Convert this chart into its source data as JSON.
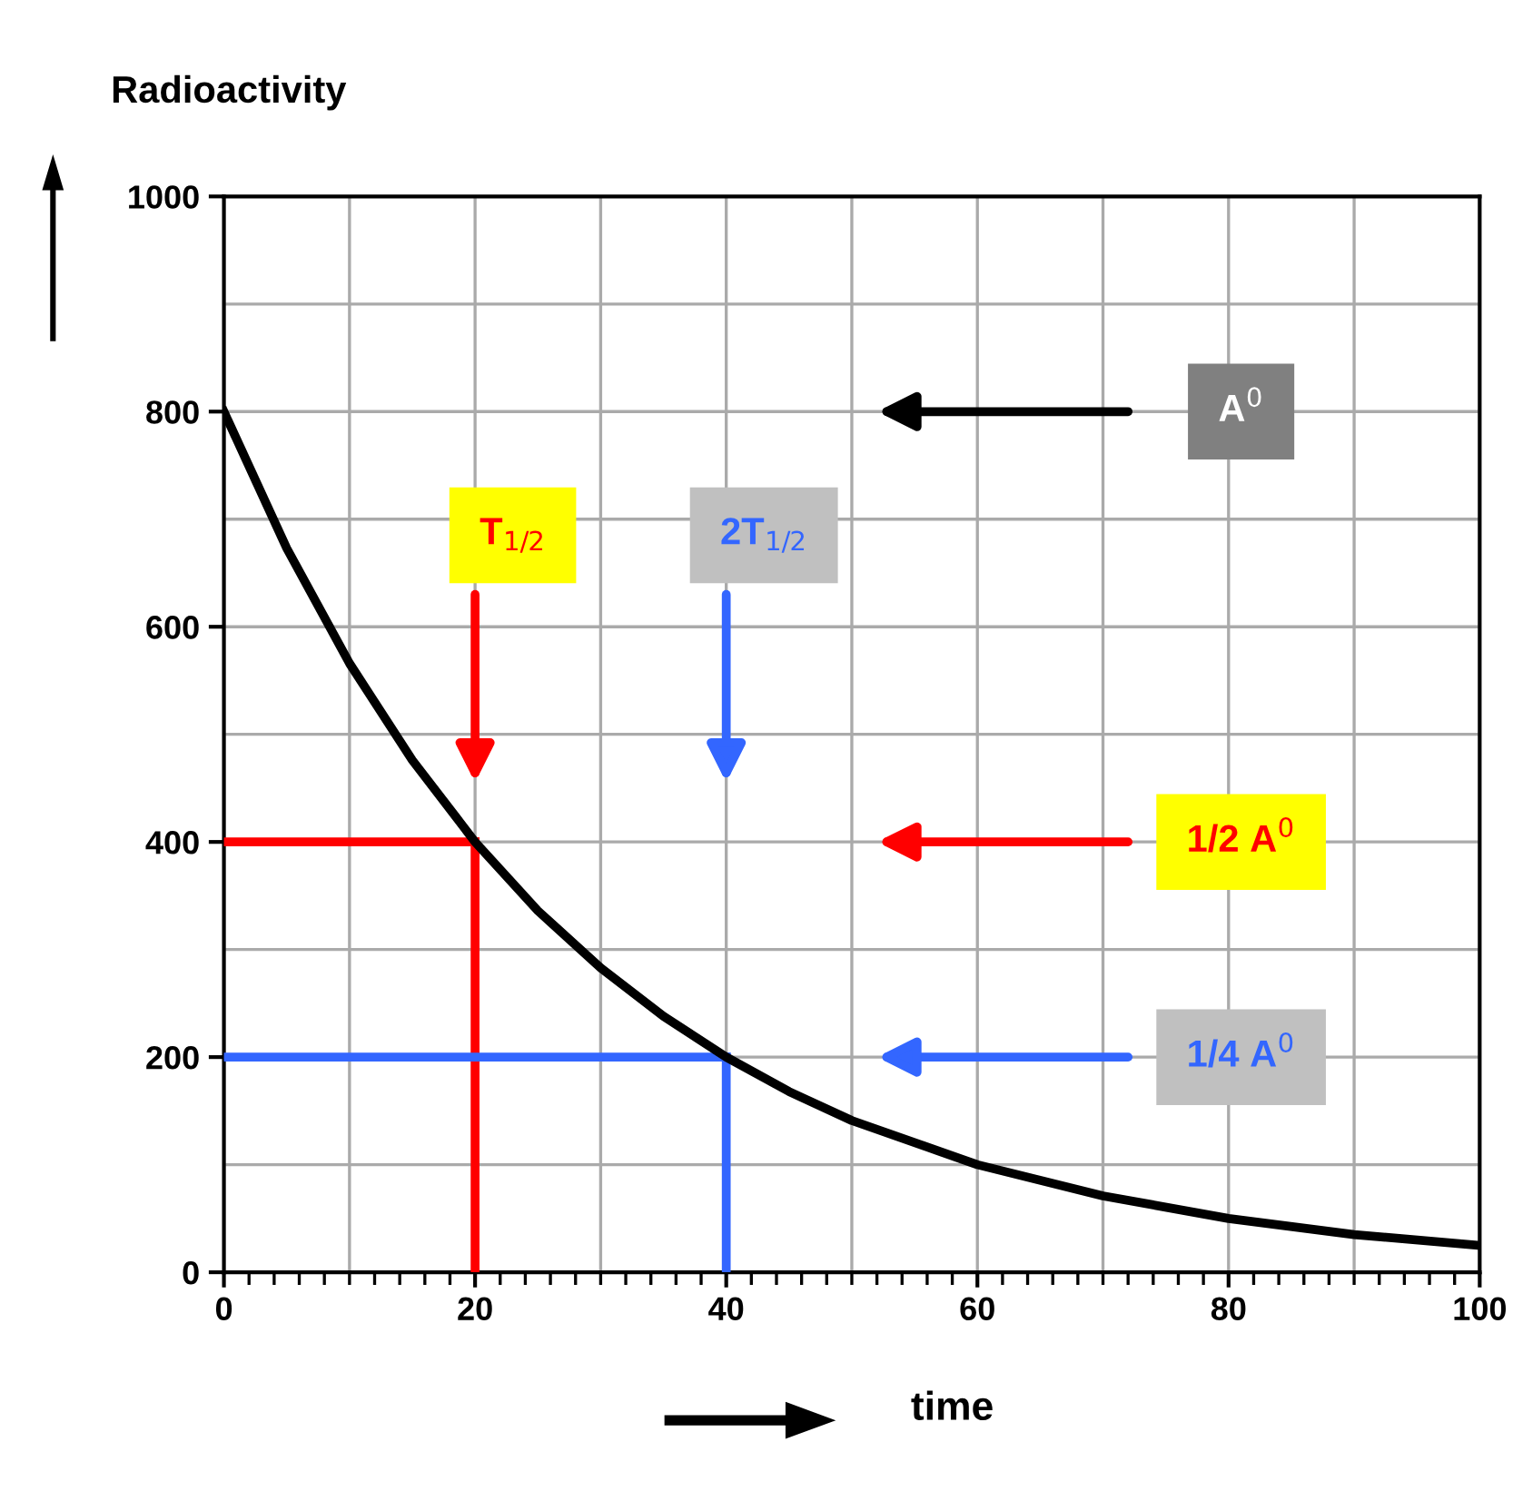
{
  "chart_data": {
    "type": "line",
    "xlabel": "time",
    "ylabel": "Radioactivity",
    "x": [
      0,
      5,
      10,
      15,
      20,
      25,
      30,
      35,
      40,
      45,
      50,
      60,
      70,
      80,
      90,
      100
    ],
    "series": [
      {
        "color": "#000000",
        "values": [
          800,
          673,
          566,
          476,
          400,
          336,
          283,
          238,
          200,
          168,
          141,
          100,
          71,
          50,
          35,
          25
        ]
      }
    ],
    "xlim": [
      0,
      100
    ],
    "ylim": [
      0,
      1000
    ],
    "xticks": [
      0,
      20,
      40,
      60,
      80,
      100
    ],
    "yticks": [
      0,
      200,
      400,
      600,
      800,
      1000
    ],
    "grid": true,
    "marker": "none",
    "line_style": "solid",
    "ref_lines": [
      {
        "axis": "x",
        "value": 20,
        "color": "#ff0000"
      },
      {
        "axis": "y",
        "value": 400,
        "color": "#ff0000"
      },
      {
        "axis": "x",
        "value": 40,
        "color": "#3366ff"
      },
      {
        "axis": "y",
        "value": 200,
        "color": "#3366ff"
      }
    ],
    "annotations": [
      "T$_{1/2}$",
      "2T$_{1/2}$",
      "A$^{0}$",
      "1/2 A$^{0}$",
      "1/4 A$^{0}$"
    ]
  }
}
